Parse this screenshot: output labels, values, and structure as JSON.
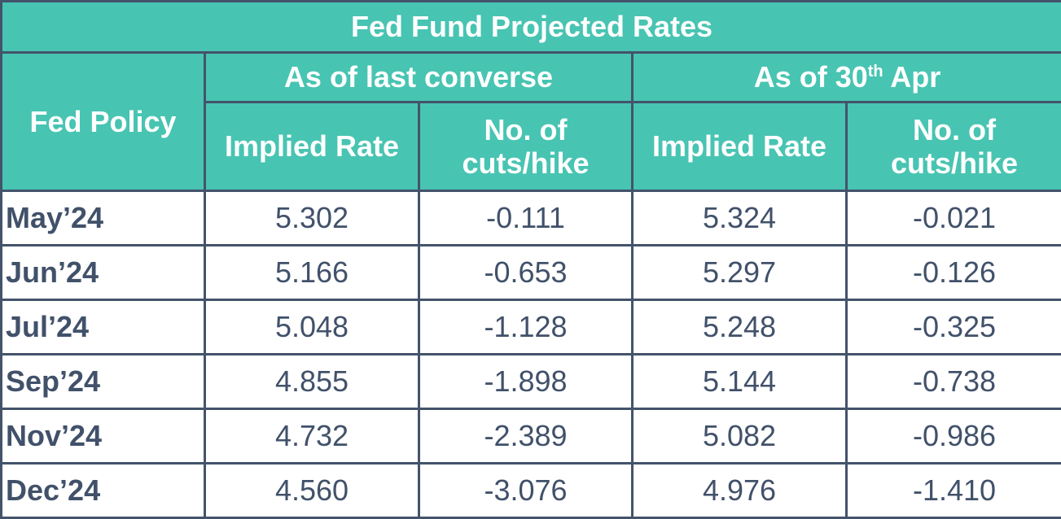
{
  "chart_data": {
    "type": "table",
    "title": "Fed Fund Projected Rates",
    "row_header": "Fed Policy",
    "groups": [
      {
        "label": "As of last converse"
      },
      {
        "label_prefix": "As of 30",
        "label_sup": "th",
        "label_suffix": " Apr"
      }
    ],
    "sub_columns": [
      {
        "label": "Implied Rate"
      },
      {
        "label_line1": "No. of",
        "label_line2": "cuts/hike"
      }
    ],
    "rows": [
      {
        "month": "May’24",
        "values": [
          "5.302",
          "-0.111",
          "5.324",
          "-0.021"
        ]
      },
      {
        "month": "Jun’24",
        "values": [
          "5.166",
          "-0.653",
          "5.297",
          "-0.126"
        ]
      },
      {
        "month": "Jul’24",
        "values": [
          "5.048",
          "-1.128",
          "5.248",
          "-0.325"
        ]
      },
      {
        "month": "Sep’24",
        "values": [
          "4.855",
          "-1.898",
          "5.144",
          "-0.738"
        ]
      },
      {
        "month": "Nov’24",
        "values": [
          "4.732",
          "-2.389",
          "5.082",
          "-0.986"
        ]
      },
      {
        "month": "Dec’24",
        "values": [
          "4.560",
          "-3.076",
          "4.976",
          "-1.410"
        ]
      }
    ]
  },
  "colors": {
    "header_bg": "#48c4b2",
    "header_text": "#ffffff",
    "body_text": "#41516a",
    "border": "#43536a"
  }
}
